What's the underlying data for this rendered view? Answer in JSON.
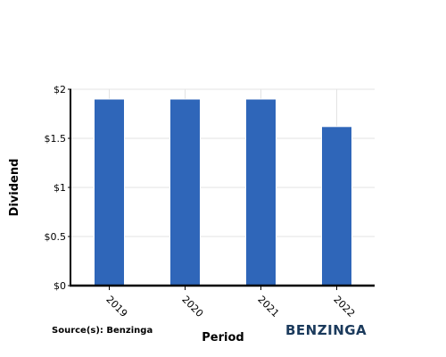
{
  "chart_data": {
    "type": "bar",
    "categories": [
      "2019",
      "2020",
      "2021",
      "2022"
    ],
    "values": [
      1.9,
      1.9,
      1.9,
      1.62
    ],
    "title": "",
    "xlabel": "Period",
    "ylabel": "Dividend",
    "ylim": [
      0,
      2
    ],
    "yticks": [
      0,
      0.5,
      1,
      1.5,
      2
    ],
    "ytick_labels": [
      "$0",
      "$0.5",
      "$1",
      "$1.5",
      "$2"
    ],
    "grid": true,
    "legend": "none",
    "bar_color": "#2f66b9"
  },
  "footer": {
    "source": "Source(s): Benzinga",
    "brand": "BENZINGA"
  }
}
